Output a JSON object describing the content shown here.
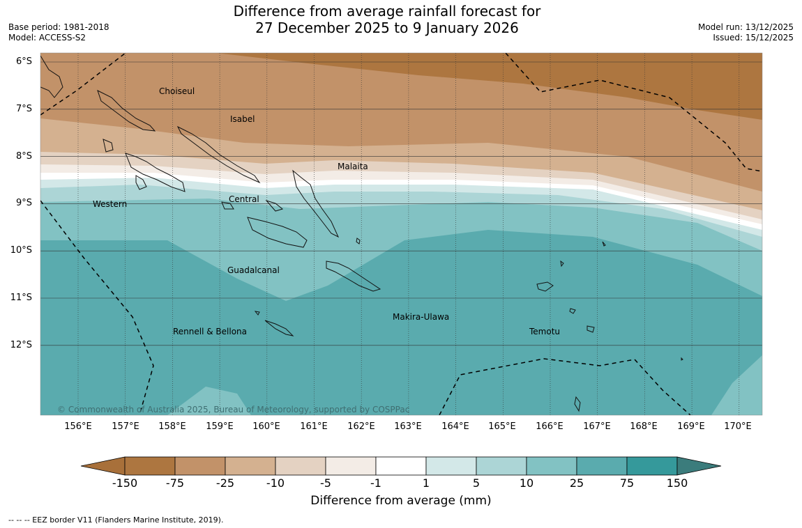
{
  "title_line1": "Difference from average rainfall forecast for",
  "title_line2": "27 December 2025 to 9 January 2026",
  "meta": {
    "base_period": "Base period: 1981-2018",
    "model": "Model: ACCESS-S2",
    "model_run": "Model run: 13/12/2025",
    "issued": "Issued: 15/12/2025"
  },
  "lat_labels": [
    "6°S",
    "7°S",
    "8°S",
    "9°S",
    "10°S",
    "11°S",
    "12°S"
  ],
  "lon_labels": [
    "156°E",
    "157°E",
    "158°E",
    "159°E",
    "160°E",
    "161°E",
    "162°E",
    "163°E",
    "164°E",
    "165°E",
    "166°E",
    "167°E",
    "168°E",
    "169°E",
    "170°E"
  ],
  "regions": [
    "Choiseul",
    "Isabel",
    "Malaita",
    "Western",
    "Central",
    "Guadalcanal",
    "Makira-Ulawa",
    "Rennell & Bellona",
    "Temotu"
  ],
  "copyright": "© Commonwealth of Australia 2025, Bureau of Meteorology, supported by COSPPac",
  "colorbar": {
    "title": "Difference from average (mm)",
    "ticks": [
      "-150",
      "-75",
      "-25",
      "-10",
      "-5",
      "-1",
      "1",
      "5",
      "10",
      "25",
      "75",
      "150"
    ],
    "colors": [
      "#a8703a",
      "#ad7640",
      "#c29269",
      "#d4b190",
      "#e4d2c2",
      "#f3ece6",
      "#ffffff",
      "#d3e8e8",
      "#acd5d6",
      "#82c2c3",
      "#5aabae",
      "#35999b",
      "#3b7c7c"
    ]
  },
  "footer": "--  --  -- EEZ border V11 (Flanders Marine Institute, 2019)."
}
